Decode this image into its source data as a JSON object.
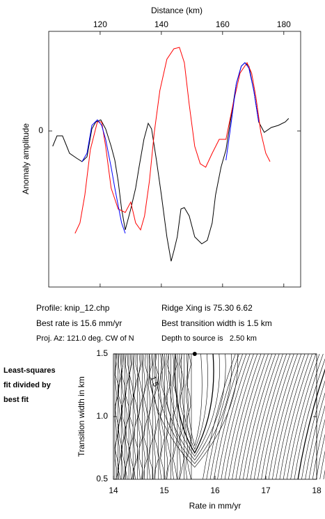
{
  "chart_data": [
    {
      "type": "line",
      "title": "Distance (km)",
      "ylabel": "Anomaly amplitude",
      "xlim": [
        103.2,
        185.5
      ],
      "xticks": [
        120,
        140,
        160,
        180
      ],
      "ylim": [
        -224,
        143
      ],
      "yticks": [
        0
      ],
      "series": [
        {
          "color": "#000000",
          "x": [
            104.5,
            105.9,
            107.7,
            108.9,
            110,
            112.3,
            114.1,
            115.7,
            117.3,
            118.6,
            120.2,
            121.8,
            123.6,
            124.8,
            125.9,
            127,
            128.2,
            130,
            131.6,
            132.7,
            134.3,
            135.7,
            136.8,
            138.4,
            140,
            141.8,
            143.2,
            144.1,
            145.2,
            146.4,
            147.5,
            149.1,
            150.9,
            153.2,
            155,
            156.6,
            157.7,
            159.5,
            161.1,
            162.7,
            164.5,
            166.1,
            167.3,
            168.6,
            170.2,
            171.8,
            173.6,
            175.9,
            178.2,
            180.5,
            181.6
          ],
          "values": [
            -22,
            -7,
            -7,
            -20,
            -32,
            -39,
            -44,
            -37,
            3,
            13,
            16,
            3,
            -22,
            -42,
            -72,
            -112,
            -142,
            -112,
            -82,
            -52,
            -12,
            11,
            3,
            -42,
            -92,
            -152,
            -187,
            -172,
            -152,
            -112,
            -110,
            -122,
            -152,
            -162,
            -157,
            -132,
            -92,
            -52,
            -27,
            18,
            68,
            93,
            98,
            93,
            58,
            13,
            -2,
            5,
            8,
            13,
            18
          ]
        },
        {
          "color": "#ff0000",
          "x": [
            111.8,
            113.4,
            115,
            116.8,
            119.1,
            120.5,
            121.8,
            123.6,
            125.9,
            128.2,
            130,
            131.6,
            133.2,
            134.5,
            136.1,
            137.7,
            139.5,
            141.8,
            144.1,
            145.9,
            147.5,
            149.1,
            150.9,
            152.7,
            154.5,
            156.6,
            158.9,
            161.1,
            163.4,
            165.7,
            168,
            169.5,
            170.9,
            172.5,
            174.1,
            175.5
          ],
          "values": [
            -147,
            -132,
            -92,
            -27,
            13,
            13,
            -22,
            -82,
            -112,
            -117,
            -102,
            -132,
            -142,
            -122,
            -72,
            -2,
            58,
            103,
            118,
            120,
            98,
            38,
            -22,
            -47,
            -52,
            -32,
            -12,
            -12,
            38,
            83,
            98,
            83,
            48,
            -2,
            -32,
            -44
          ]
        },
        {
          "color": "#0000ff",
          "x": [
            114.1,
            115.7,
            117.3,
            119.1,
            120.5,
            121.8,
            123.6,
            124.8,
            125.9,
            127,
            128.2,
            145,
            161.1,
            162.7,
            164.5,
            166.1,
            167.3,
            168.6,
            170.2,
            171.8
          ],
          "values": [
            -44,
            -32,
            8,
            16,
            8,
            -12,
            -52,
            -82,
            -107,
            -132,
            -147,
            null,
            -42,
            8,
            68,
            93,
            98,
            90,
            58,
            13
          ]
        }
      ]
    },
    {
      "type": "contour",
      "xlabel": "Rate in mm/yr",
      "ylabel": "Transition width in km",
      "xlim": [
        14,
        18
      ],
      "xticks": [
        14,
        15,
        16,
        17,
        18
      ],
      "ylim": [
        0.5,
        1.5
      ],
      "yticks": [
        {
          "value": 0.5,
          "label": "0.5"
        },
        {
          "value": 1.0,
          "label": "1.0"
        },
        {
          "value": 1.5,
          "label": "1.5"
        }
      ],
      "best_fit": {
        "x": 15.6,
        "y": 1.5
      },
      "contour_label": "1.5"
    }
  ],
  "info": {
    "profile": "Profile: knip_12.chp",
    "rate": "Best rate is 15.6 mm/yr",
    "azimuth": "Proj. Az: 121.0 deg. CW of N",
    "ridge": "Ridge Xing is 75.30 6.62",
    "width": "Best transition width is 1.5 km",
    "depth": "Depth to source is   2.50 km"
  },
  "side_label": [
    "Least-squares",
    "fit divided by",
    "best fit"
  ]
}
